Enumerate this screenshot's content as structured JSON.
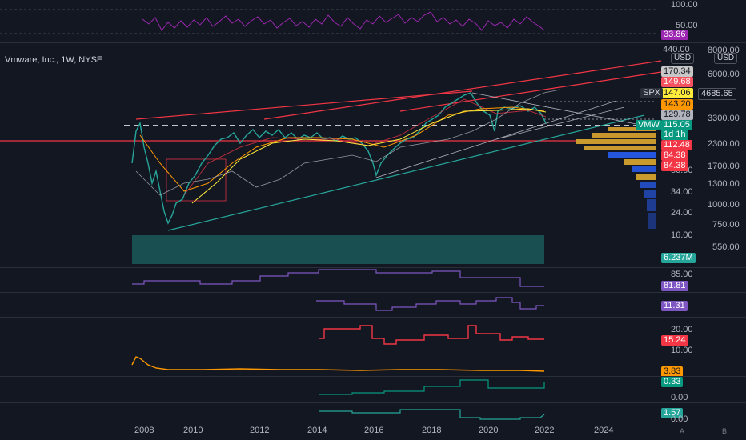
{
  "chart": {
    "title": "Vmware, Inc., 1W, NYSE",
    "currency_left": "USD",
    "currency_right": "USD",
    "spx_label": "SPX",
    "spx_value": "4685.65",
    "vmw_label": "VMW",
    "vmw_value": "115.05",
    "countdown": "1d 1h",
    "x_labels": [
      "2008",
      "2010",
      "2012",
      "2014",
      "2016",
      "2018",
      "2020",
      "2022",
      "2024"
    ],
    "right_scale": [
      "8000.00",
      "6000.00",
      "3300.00",
      "2300.00",
      "1700.00",
      "1300.00",
      "1000.00",
      "750.00",
      "550.00"
    ],
    "left_scale": [
      "440.00",
      "50.00",
      "34.00",
      "24.00",
      "16.00"
    ],
    "price_tags": [
      {
        "value": "170.34",
        "bg": "#c7c7c7",
        "fg": "#131722"
      },
      {
        "value": "149.68",
        "bg": "#f7525f",
        "fg": "#ffffff"
      },
      {
        "value": "147.06",
        "bg": "#ffeb3b",
        "fg": "#131722"
      },
      {
        "value": "143.20",
        "bg": "#ff9800",
        "fg": "#131722"
      },
      {
        "value": "129.78",
        "bg": "#b2b5be",
        "fg": "#131722"
      },
      {
        "value": "112.48",
        "bg": "#f23645",
        "fg": "#ffffff"
      },
      {
        "value": "84.38",
        "bg": "#f23645",
        "fg": "#ffffff"
      },
      {
        "value": "84.38",
        "bg": "#f23645",
        "fg": "#ffffff"
      }
    ],
    "volume": "6.237M"
  },
  "rsi": {
    "levels": [
      "100.00",
      "50.00"
    ],
    "value": "33.86",
    "color": "#9c27b0"
  },
  "indicators": [
    {
      "scale": "85.00",
      "value": "81.81",
      "color": "#7e57c2"
    },
    {
      "scale": "",
      "value": "11.31",
      "color": "#7e57c2"
    },
    {
      "scale": "20.00",
      "value": "15.24",
      "color": "#f23645"
    },
    {
      "scale": "10.00",
      "value": "3.83",
      "color": "#ff9800"
    },
    {
      "scale": "",
      "value": "0.33",
      "color": "#089981"
    },
    {
      "scale": "0.00",
      "value": "1.57",
      "color": "#26a69a"
    },
    {
      "scale": "0.00",
      "value": "",
      "color": "#26a69a"
    }
  ],
  "corner_icons": {
    "auto": "A",
    "settings": "B"
  }
}
